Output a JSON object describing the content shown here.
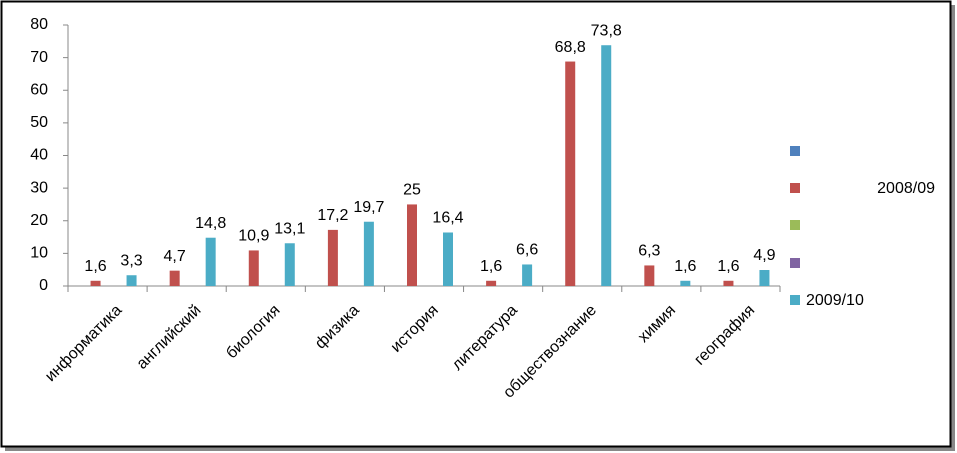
{
  "chart_data": {
    "type": "bar",
    "categories": [
      "информатика",
      "английский",
      "биология",
      "физика",
      "история",
      "литература",
      "обществознание",
      "химия",
      "география"
    ],
    "series": [
      {
        "name": "2008/09",
        "color": "#c0504d",
        "values": [
          1.6,
          4.7,
          10.9,
          17.2,
          25,
          1.6,
          68.8,
          6.3,
          1.6
        ],
        "value_labels": [
          "1,6",
          "4,7",
          "10,9",
          "17,2",
          "25",
          "1,6",
          "68,8",
          "6,3",
          "1,6"
        ]
      },
      {
        "name": "2009/10",
        "color": "#4bacc6",
        "values": [
          3.3,
          14.8,
          13.1,
          19.7,
          16.4,
          6.6,
          73.8,
          1.6,
          4.9
        ],
        "value_labels": [
          "3,3",
          "14,8",
          "13,1",
          "19,7",
          "16,4",
          "6,6",
          "73,8",
          "1,6",
          "4,9"
        ]
      }
    ],
    "ylim": [
      0,
      80
    ],
    "yticks": [
      0,
      10,
      20,
      30,
      40,
      50,
      60,
      70,
      80
    ],
    "grid": false,
    "legend": "right"
  }
}
